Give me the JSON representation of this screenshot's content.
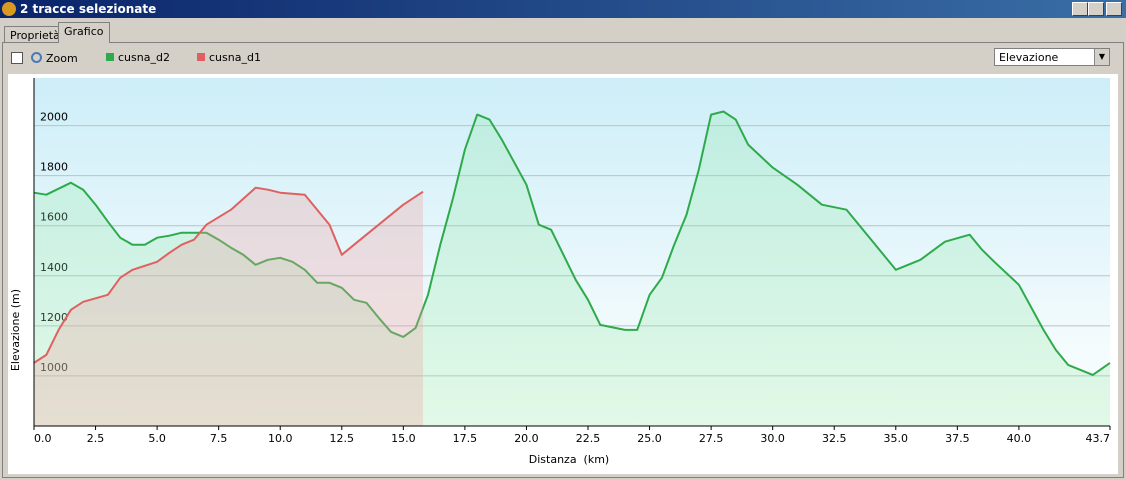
{
  "window": {
    "title": "2 tracce selezionate",
    "tabs": [
      "Proprietà",
      "Grafico"
    ],
    "zoom_label": "Zoom",
    "dropdown": "Elevazione"
  },
  "chart_data": {
    "type": "line",
    "x_label": "Distanza  (km)",
    "y_label": "Elevazione (m)",
    "xlim": [
      0,
      43.7
    ],
    "ylim": [
      800,
      2190
    ],
    "xticks": [
      {
        "value": 0,
        "label": "0.0"
      },
      2.5,
      {
        "value": 5,
        "label": "5.0"
      },
      7.5,
      {
        "value": 10,
        "label": "10.0"
      },
      12.5,
      {
        "value": 15,
        "label": "15.0"
      },
      17.5,
      {
        "value": 20,
        "label": "20.0"
      },
      22.5,
      {
        "value": 25,
        "label": "25.0"
      },
      27.5,
      {
        "value": 30,
        "label": "30.0"
      },
      32.5,
      {
        "value": 35,
        "label": "35.0"
      },
      37.5,
      {
        "value": 40,
        "label": "40.0"
      },
      43.7
    ],
    "yticks": [
      1000,
      1200,
      1400,
      1600,
      1800,
      2000
    ],
    "grid": true,
    "series": [
      {
        "name": "cusna_d2",
        "color": "#2eaa4a",
        "fill": "rgba(140,230,160,0.25)",
        "x": [
          0,
          0.5,
          1.5,
          2,
          2.5,
          3,
          3.5,
          4,
          4.5,
          5,
          5.5,
          6,
          7,
          7.5,
          8,
          8.5,
          9,
          9.5,
          10,
          10.5,
          11,
          11.5,
          12,
          12.5,
          13,
          13.5,
          14,
          14.5,
          15,
          15.5,
          16,
          16.5,
          17,
          17.5,
          18,
          18.5,
          19,
          20,
          20.5,
          21,
          22,
          22.5,
          23,
          24,
          24.5,
          25,
          25.5,
          26,
          26.5,
          27,
          27.5,
          28,
          28.5,
          29,
          30,
          31,
          32,
          33,
          34,
          35,
          36,
          37,
          38,
          38.5,
          39,
          40,
          41,
          41.5,
          42,
          42.5,
          43,
          43.7
        ],
        "values": [
          1732,
          1724,
          1772,
          1744,
          1684,
          1616,
          1552,
          1524,
          1524,
          1552,
          1560,
          1572,
          1572,
          1544,
          1512,
          1484,
          1444,
          1464,
          1472,
          1456,
          1424,
          1372,
          1372,
          1352,
          1304,
          1292,
          1232,
          1176,
          1156,
          1192,
          1324,
          1524,
          1704,
          1904,
          2044,
          2024,
          1944,
          1764,
          1604,
          1584,
          1384,
          1304,
          1204,
          1184,
          1184,
          1324,
          1392,
          1524,
          1644,
          1824,
          2044,
          2056,
          2024,
          1924,
          1832,
          1764,
          1684,
          1664,
          1544,
          1424,
          1464,
          1536,
          1564,
          1504,
          1456,
          1364,
          1184,
          1104,
          1044,
          1024,
          1004,
          1052
        ]
      },
      {
        "name": "cusna_d1",
        "color": "#e06060",
        "fill": "rgba(240,160,160,0.3)",
        "x": [
          0,
          0.5,
          1,
          1.5,
          2,
          3,
          3.5,
          4,
          5,
          5.5,
          6,
          6.5,
          7,
          8,
          9,
          9.5,
          10,
          11,
          12,
          12.5,
          13,
          14,
          15,
          15.8
        ],
        "values": [
          1052,
          1084,
          1184,
          1264,
          1296,
          1324,
          1392,
          1424,
          1456,
          1492,
          1524,
          1544,
          1604,
          1664,
          1752,
          1744,
          1732,
          1724,
          1604,
          1484,
          1524,
          1604,
          1684,
          1736
        ]
      }
    ]
  }
}
